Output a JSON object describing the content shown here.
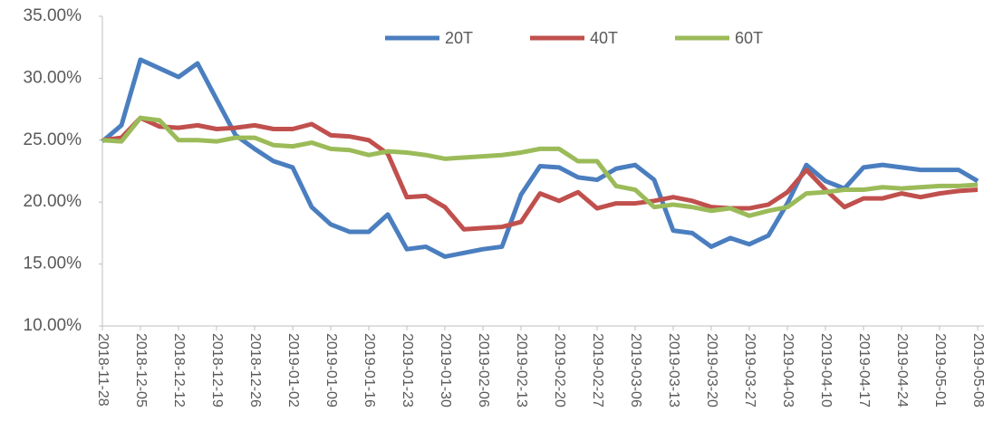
{
  "chart_data": {
    "type": "line",
    "categories": [
      "2018-11-28",
      null,
      "2018-12-05",
      null,
      "2018-12-12",
      null,
      "2018-12-19",
      null,
      "2018-12-26",
      null,
      "2019-01-02",
      null,
      "2019-01-09",
      null,
      "2019-01-16",
      null,
      "2019-01-23",
      null,
      "2019-01-30",
      null,
      "2019-02-06",
      null,
      "2019-02-13",
      null,
      "2019-02-20",
      null,
      "2019-02-27",
      null,
      "2019-03-06",
      null,
      "2019-03-13",
      null,
      "2019-03-20",
      null,
      "2019-03-27",
      null,
      "2019-04-03",
      null,
      "2019-04-10",
      null,
      "2019-04-17",
      null,
      "2019-04-24",
      null,
      "2019-05-01",
      null,
      "2019-05-08"
    ],
    "series": [
      {
        "name": "20T",
        "color": "#4a7ebf",
        "values": [
          24.9,
          26.2,
          31.5,
          30.8,
          30.1,
          31.2,
          28.3,
          25.4,
          24.3,
          23.3,
          22.8,
          19.6,
          18.2,
          17.6,
          17.6,
          19.0,
          16.2,
          16.4,
          15.6,
          15.9,
          16.2,
          16.4,
          20.6,
          22.9,
          22.8,
          22.0,
          21.8,
          22.7,
          23.0,
          21.8,
          17.7,
          17.5,
          16.4,
          17.1,
          16.6,
          17.3,
          19.9,
          23.0,
          21.7,
          21.1,
          22.8,
          23.0,
          22.8,
          22.6,
          22.6,
          22.6,
          21.7
        ]
      },
      {
        "name": "40T",
        "color": "#c0504d",
        "values": [
          25.0,
          25.2,
          26.8,
          26.1,
          26.0,
          26.2,
          25.9,
          26.0,
          26.2,
          25.9,
          25.9,
          26.3,
          25.4,
          25.3,
          25.0,
          23.9,
          20.4,
          20.5,
          19.6,
          17.8,
          17.9,
          18.0,
          18.4,
          20.7,
          20.1,
          20.8,
          19.5,
          19.9,
          19.9,
          20.1,
          20.4,
          20.1,
          19.6,
          19.5,
          19.5,
          19.8,
          20.8,
          22.6,
          21.0,
          19.6,
          20.3,
          20.3,
          20.7,
          20.4,
          20.7,
          20.9,
          21.0
        ]
      },
      {
        "name": "60T",
        "color": "#9bbb59",
        "values": [
          25.0,
          24.9,
          26.8,
          26.6,
          25.0,
          25.0,
          24.9,
          25.2,
          25.2,
          24.6,
          24.5,
          24.8,
          24.3,
          24.2,
          23.8,
          24.1,
          24.0,
          23.8,
          23.5,
          23.6,
          23.7,
          23.8,
          24.0,
          24.3,
          24.3,
          23.3,
          23.3,
          21.3,
          21.0,
          19.6,
          19.8,
          19.6,
          19.3,
          19.5,
          18.9,
          19.3,
          19.6,
          20.7,
          20.8,
          21.0,
          21.0,
          21.2,
          21.1,
          21.2,
          21.3,
          21.3,
          21.4
        ]
      }
    ],
    "ylim": [
      10,
      35
    ],
    "yticks": [
      {
        "value": 10,
        "label": "10.00%"
      },
      {
        "value": 15,
        "label": "15.00%"
      },
      {
        "value": 20,
        "label": "20.00%"
      },
      {
        "value": 25,
        "label": "25.00%"
      },
      {
        "value": 30,
        "label": "30.00%"
      },
      {
        "value": 35,
        "label": "35.00%"
      }
    ],
    "legend": "top"
  }
}
